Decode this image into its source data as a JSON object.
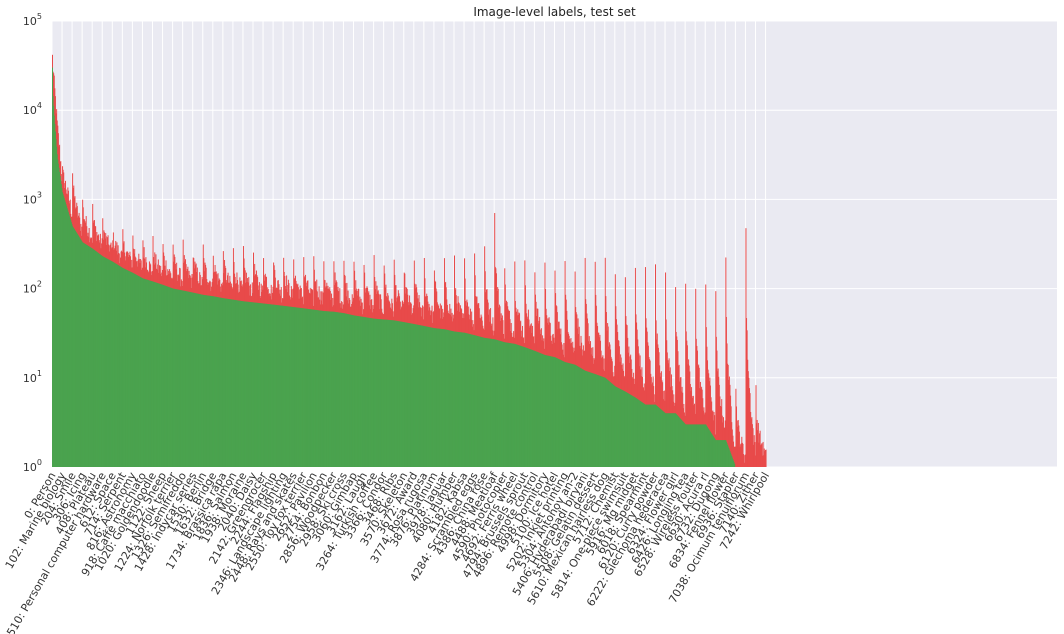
{
  "chart_data": {
    "type": "bar",
    "title": "Image-level labels, test set",
    "xlabel": "",
    "ylabel": "",
    "yscale": "log",
    "ylim": [
      1,
      100000
    ],
    "yticks": [
      {
        "value": 1,
        "base": "10",
        "exp": "0"
      },
      {
        "value": 10,
        "base": "10",
        "exp": "1"
      },
      {
        "value": 100,
        "base": "10",
        "exp": "2"
      },
      {
        "value": 1000,
        "base": "10",
        "exp": "3"
      },
      {
        "value": 10000,
        "base": "10",
        "exp": "4"
      },
      {
        "value": 100000,
        "base": "10",
        "exp": "5"
      }
    ],
    "grid": true,
    "num_classes": 7242,
    "xlim": [
      0,
      10200
    ],
    "series": [
      {
        "name": "",
        "color": "#e84a4a"
      },
      {
        "name": "",
        "color": "#4aa34e"
      }
    ],
    "positive_counts_profile": [
      [
        0,
        30000
      ],
      [
        5,
        15000
      ],
      [
        20,
        8000
      ],
      [
        50,
        3000
      ],
      [
        102,
        1200
      ],
      [
        204,
        500
      ],
      [
        306,
        330
      ],
      [
        408,
        280
      ],
      [
        510,
        230
      ],
      [
        612,
        200
      ],
      [
        714,
        170
      ],
      [
        816,
        150
      ],
      [
        918,
        130
      ],
      [
        1020,
        120
      ],
      [
        1122,
        110
      ],
      [
        1224,
        100
      ],
      [
        1326,
        95
      ],
      [
        1428,
        90
      ],
      [
        1530,
        85
      ],
      [
        1632,
        82
      ],
      [
        1734,
        78
      ],
      [
        1836,
        75
      ],
      [
        1938,
        72
      ],
      [
        2040,
        70
      ],
      [
        2142,
        68
      ],
      [
        2244,
        66
      ],
      [
        2346,
        64
      ],
      [
        2448,
        62
      ],
      [
        2550,
        60
      ],
      [
        2652,
        58
      ],
      [
        2754,
        56
      ],
      [
        2856,
        55
      ],
      [
        2958,
        53
      ],
      [
        3060,
        50
      ],
      [
        3162,
        48
      ],
      [
        3264,
        46
      ],
      [
        3366,
        45
      ],
      [
        3468,
        44
      ],
      [
        3570,
        42
      ],
      [
        3672,
        40
      ],
      [
        3774,
        38
      ],
      [
        3876,
        36
      ],
      [
        3978,
        35
      ],
      [
        4080,
        33
      ],
      [
        4182,
        32
      ],
      [
        4284,
        30
      ],
      [
        4386,
        28
      ],
      [
        4488,
        27
      ],
      [
        4590,
        25
      ],
      [
        4692,
        24
      ],
      [
        4794,
        22
      ],
      [
        4896,
        20
      ],
      [
        4998,
        18
      ],
      [
        5100,
        17
      ],
      [
        5202,
        15
      ],
      [
        5304,
        14
      ],
      [
        5406,
        12
      ],
      [
        5508,
        11
      ],
      [
        5610,
        10
      ],
      [
        5712,
        8
      ],
      [
        5814,
        7
      ],
      [
        5916,
        6
      ],
      [
        6018,
        5
      ],
      [
        6120,
        5
      ],
      [
        6222,
        4
      ],
      [
        6324,
        4
      ],
      [
        6426,
        3
      ],
      [
        6528,
        3
      ],
      [
        6630,
        3
      ],
      [
        6732,
        2
      ],
      [
        6834,
        2
      ],
      [
        6936,
        1
      ],
      [
        7038,
        1
      ],
      [
        7242,
        1
      ]
    ],
    "total_counts_peaks": [
      [
        0,
        30000
      ],
      [
        102,
        1600
      ],
      [
        204,
        1600
      ],
      [
        306,
        800
      ],
      [
        408,
        600
      ],
      [
        510,
        450
      ],
      [
        612,
        330
      ],
      [
        714,
        290
      ],
      [
        816,
        280
      ],
      [
        918,
        270
      ],
      [
        1020,
        250
      ],
      [
        1122,
        240
      ],
      [
        1224,
        230
      ],
      [
        1326,
        230
      ],
      [
        1428,
        220
      ],
      [
        1530,
        220
      ],
      [
        1632,
        210
      ],
      [
        1734,
        210
      ],
      [
        1836,
        200
      ],
      [
        1938,
        200
      ],
      [
        2040,
        200
      ],
      [
        2142,
        190
      ],
      [
        2244,
        190
      ],
      [
        2346,
        180
      ],
      [
        2448,
        180
      ],
      [
        2550,
        170
      ],
      [
        2652,
        170
      ],
      [
        2754,
        165
      ],
      [
        2856,
        160
      ],
      [
        2958,
        160
      ],
      [
        3060,
        160
      ],
      [
        3162,
        155
      ],
      [
        3264,
        155
      ],
      [
        3366,
        150
      ],
      [
        3468,
        150
      ],
      [
        3570,
        150
      ],
      [
        3672,
        150
      ],
      [
        3774,
        150
      ],
      [
        3876,
        150
      ],
      [
        3978,
        150
      ],
      [
        4080,
        150
      ],
      [
        4182,
        150
      ],
      [
        4284,
        200
      ],
      [
        4386,
        220
      ],
      [
        4488,
        500
      ],
      [
        4590,
        140
      ],
      [
        4692,
        140
      ],
      [
        4794,
        140
      ],
      [
        4896,
        140
      ],
      [
        4998,
        140
      ],
      [
        5100,
        140
      ],
      [
        5202,
        140
      ],
      [
        5304,
        140
      ],
      [
        5406,
        140
      ],
      [
        5508,
        140
      ],
      [
        5610,
        140
      ],
      [
        5712,
        130
      ],
      [
        5814,
        130
      ],
      [
        5916,
        130
      ],
      [
        6018,
        130
      ],
      [
        6120,
        120
      ],
      [
        6222,
        110
      ],
      [
        6324,
        100
      ],
      [
        6426,
        100
      ],
      [
        6528,
        90
      ],
      [
        6630,
        80
      ],
      [
        6732,
        70
      ],
      [
        6834,
        170
      ],
      [
        6936,
        7
      ],
      [
        7038,
        350
      ],
      [
        7140,
        6
      ],
      [
        7242,
        1
      ]
    ],
    "categories": [
      "0: Person",
      "102: Marine biology",
      "204: Smile",
      "306: Icing",
      "408: Plateau",
      "510: Personal computer hardware",
      "612: Space",
      "714: Serpent",
      "816: Astronomy",
      "918: Caffè macchiato",
      "1020: Goldendoodle",
      "1122: Sheep",
      "1224: Norfolk terrier",
      "1326: Semifreddo",
      "1428: Indycar series",
      "1530: Berlin",
      "1632: Bridge",
      "1734: Brassica rapa",
      "1836: Salmon",
      "1938: Moraine",
      "2040: Daisy",
      "2142: Greengrocer",
      "2244: Flagship",
      "2346: Landscape lighting",
      "2448: Rays and skates",
      "2550: Toy fox terrier",
      "2652: Pavilion",
      "2754: Bonbon",
      "2856: Woodpecker",
      "2958: Ski cross",
      "3060: Gimbap",
      "3162: Laugh",
      "3264: Turkish coffee",
      "3366: Condor",
      "3468: Ribs",
      "3570: Skeleton",
      "3672: Award",
      "3774: Rosa rugosa",
      "3876: Platinum",
      "3978: Jaguar",
      "4080: Humber",
      "4182: Kabsa",
      "4284: Scrambled eggs",
      "4386: China rose",
      "4488: Meatloaf",
      "4590: Photocopier",
      "4692: Ferris wheel",
      "4794: Brussels sprout",
      "4896: Remote control",
      "4998: Dormitory",
      "5100: Ice hotel",
      "5202: Inkjet printing",
      "5304: Antonov an-2",
      "5406: Hyderabadi biryani",
      "5508: Gelatin dessert",
      "5610: Mexican hairless dog",
      "5712: Chemist",
      "5814: One-piece swimsuit",
      "5916: Mg midget",
      "6018: Spearmint",
      "6120: Curry powder",
      "6222: Glechoma hederacea",
      "6324: Flower girl",
      "6426: Longjing tea",
      "6528: Wireless router",
      "6630: Acura rl",
      "6732: Dugong",
      "6834: Fennel flower",
      "6936: Stapler",
      "7038: Ocimum tenuiflorum",
      "7140: Zither",
      "7242: Whirlpool"
    ]
  }
}
